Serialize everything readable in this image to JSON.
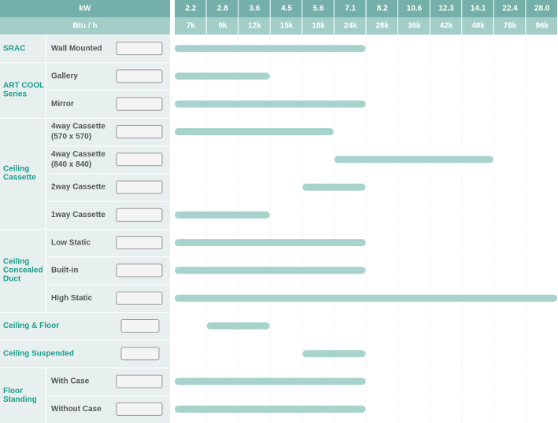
{
  "header": {
    "kw_label": "kW",
    "btu_label": "Btu / h",
    "kw": [
      "2.2",
      "2.8",
      "3.6",
      "4.5",
      "5.6",
      "7.1",
      "8.2",
      "10.6",
      "12.3",
      "14.1",
      "22.4",
      "28.0"
    ],
    "btu": [
      "7k",
      "9k",
      "12k",
      "15k",
      "18k",
      "24k",
      "28k",
      "36k",
      "42k",
      "48k",
      "76k",
      "96k"
    ]
  },
  "groups": [
    {
      "label": [
        "SRAC"
      ],
      "rows": [
        {
          "model": [
            "Wall Mounted"
          ],
          "from": "2.2",
          "to": "7.1"
        }
      ]
    },
    {
      "label": [
        "ART COOL",
        "Series"
      ],
      "rows": [
        {
          "model": [
            "Gallery"
          ],
          "from": "2.2",
          "to": "3.6"
        },
        {
          "model": [
            "Mirror"
          ],
          "from": "2.2",
          "to": "7.1"
        }
      ]
    },
    {
      "label": [
        "Ceiling",
        "Cassette"
      ],
      "rows": [
        {
          "model": [
            "4way Cassette",
            "(570 x 570)"
          ],
          "from": "2.2",
          "to": "5.6"
        },
        {
          "model": [
            "4way Cassette",
            "(840 x 840)"
          ],
          "from": "7.1",
          "to": "14.1"
        },
        {
          "model": [
            "2way Cassette"
          ],
          "from": "5.6",
          "to": "7.1"
        },
        {
          "model": [
            "1way Cassette"
          ],
          "from": "2.2",
          "to": "3.6"
        }
      ]
    },
    {
      "label": [
        "Ceiling",
        "Concealed",
        "Duct"
      ],
      "rows": [
        {
          "model": [
            "Low Static"
          ],
          "from": "2.2",
          "to": "7.1"
        },
        {
          "model": [
            "Built-in"
          ],
          "from": "2.2",
          "to": "7.1"
        },
        {
          "model": [
            "High Static"
          ],
          "from": "2.2",
          "to": "28.0"
        }
      ]
    },
    {
      "label": [
        "Ceiling & Floor"
      ],
      "rows": [
        {
          "from": "2.8",
          "to": "3.6"
        }
      ]
    },
    {
      "label": [
        "Ceiling Suspended"
      ],
      "rows": [
        {
          "from": "5.6",
          "to": "7.1"
        }
      ]
    },
    {
      "label": [
        "Floor",
        "Standing"
      ],
      "rows": [
        {
          "model": [
            "With Case"
          ],
          "from": "2.2",
          "to": "7.1"
        },
        {
          "model": [
            "Without Case"
          ],
          "from": "2.2",
          "to": "7.1"
        }
      ]
    }
  ]
}
